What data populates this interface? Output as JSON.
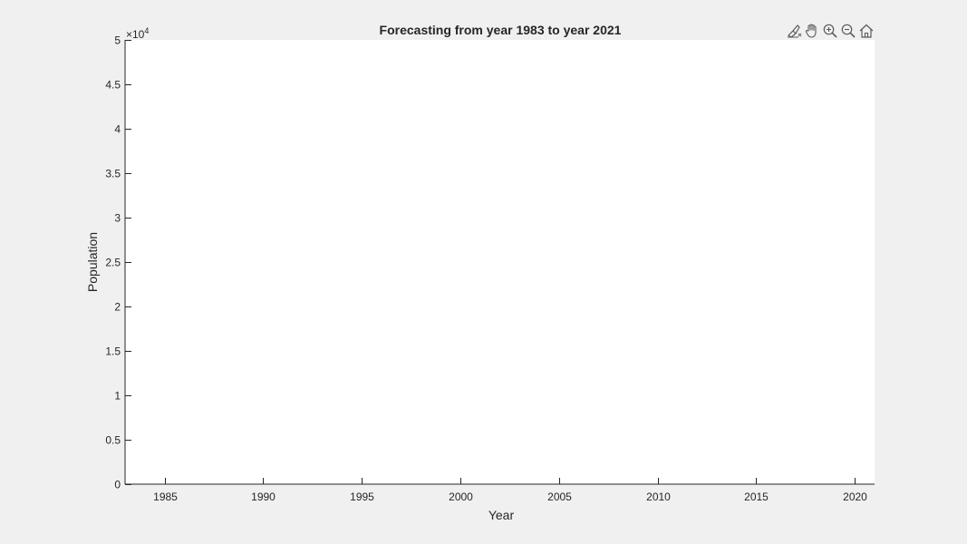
{
  "toolbar": {
    "icons": [
      "brush-data-icon",
      "pan-hand-icon",
      "zoom-in-icon",
      "zoom-out-icon",
      "home-restore-view-icon"
    ]
  },
  "chart_data": {
    "type": "line",
    "title": "Forecasting from year 1983 to year 2021",
    "xlabel": "Year",
    "ylabel": "Population",
    "xlim": [
      1983,
      2021
    ],
    "ylim": [
      0,
      50000
    ],
    "x_ticks": [
      1985,
      1990,
      1995,
      2000,
      2005,
      2010,
      2015,
      2020
    ],
    "x_tick_labels": [
      "1985",
      "1990",
      "1995",
      "2000",
      "2005",
      "2010",
      "2015",
      "2020"
    ],
    "y_ticks": [
      0,
      5000,
      10000,
      15000,
      20000,
      25000,
      30000,
      35000,
      40000,
      45000,
      50000
    ],
    "y_tick_labels": [
      "0",
      "0.5",
      "1",
      "1.5",
      "2",
      "2.5",
      "3",
      "3.5",
      "4",
      "4.5",
      "5"
    ],
    "y_exponent_base": "×10",
    "y_exponent_power": "4",
    "series": [],
    "grid": false,
    "colors": {
      "figure_background": "#f0f0f0",
      "axes_background": "#ffffff",
      "axis_color": "#262626",
      "icon_color": "#5a5a5a"
    }
  }
}
